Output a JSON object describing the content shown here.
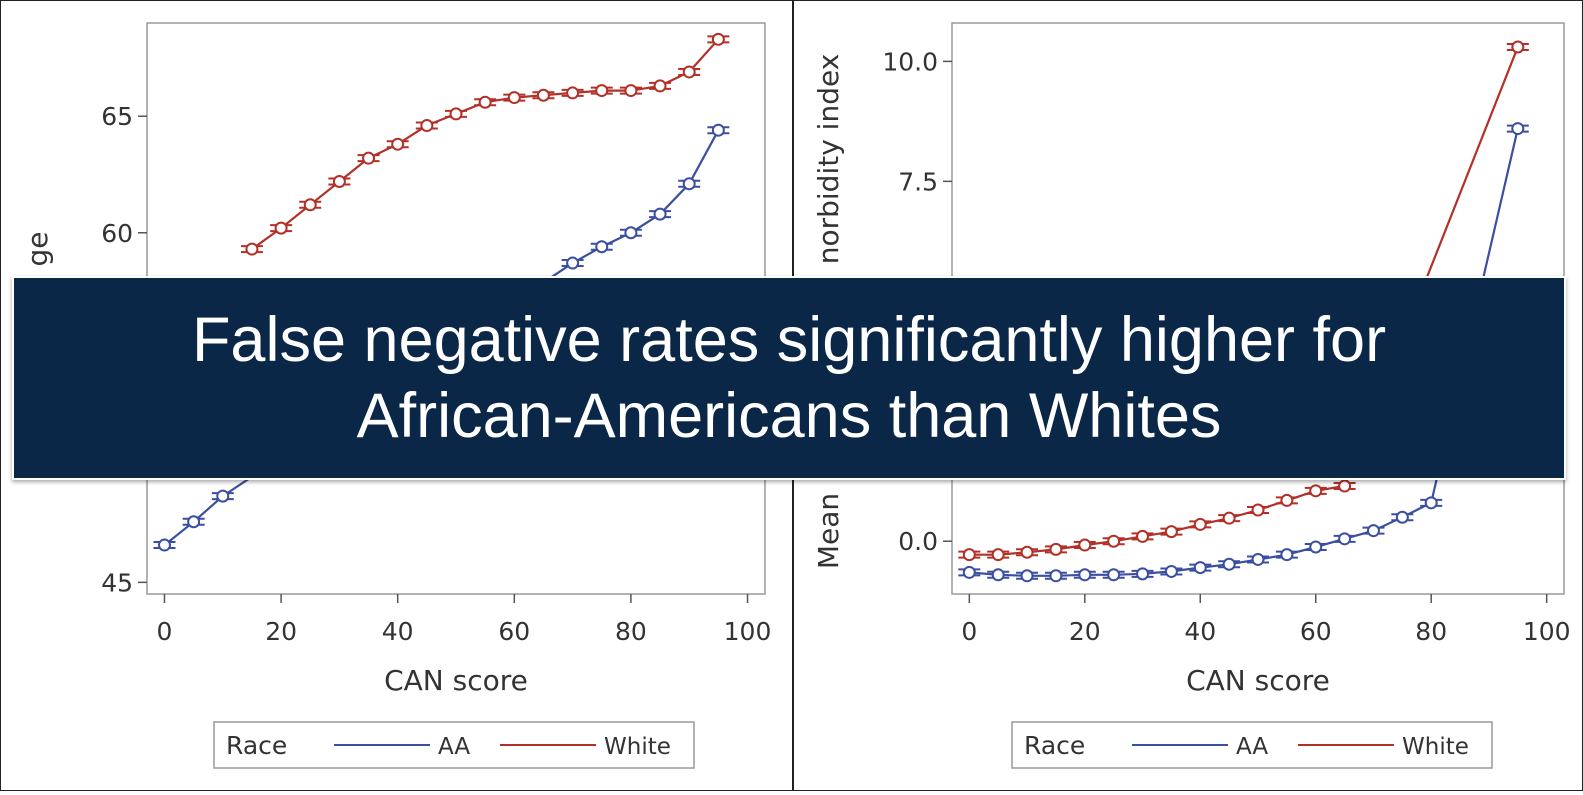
{
  "banner": {
    "line1": "False negative rates significantly higher for",
    "line2": "African-Americans than Whites"
  },
  "colors": {
    "aa": "#3b4fa0",
    "white": "#b23028"
  },
  "chart_data": [
    {
      "type": "line",
      "xlabel": "CAN score",
      "ylabel": "ge",
      "ylim": [
        44.5,
        69
      ],
      "xlim": [
        -3,
        103
      ],
      "yticks": [
        45,
        60,
        65
      ],
      "xticks": [
        0,
        20,
        40,
        60,
        80,
        100
      ],
      "legend": {
        "title": "Race",
        "placement": "bottom"
      },
      "series": [
        {
          "name": "AA",
          "x": [
            0,
            5,
            10,
            70,
            75,
            80,
            85,
            90,
            95
          ],
          "values": [
            46.6,
            47.6,
            48.7,
            58.7,
            59.4,
            60.0,
            60.8,
            62.1,
            64.4
          ]
        },
        {
          "name": "White",
          "x": [
            15,
            20,
            25,
            30,
            35,
            40,
            45,
            50,
            55,
            60,
            65,
            70,
            75,
            80,
            85,
            90,
            95
          ],
          "values": [
            59.3,
            60.2,
            61.2,
            62.2,
            63.2,
            63.8,
            64.6,
            65.1,
            65.6,
            65.8,
            65.9,
            66.0,
            66.1,
            66.1,
            66.3,
            66.9,
            68.3
          ]
        }
      ]
    },
    {
      "type": "line",
      "xlabel": "CAN score",
      "ylabel": "Mean",
      "ylabel_top": "norbidity index",
      "ylim": [
        -1.1,
        10.8
      ],
      "xlim": [
        -3,
        103
      ],
      "yticks": [
        0.0,
        7.5,
        10.0
      ],
      "ytick_labels": [
        "0.0",
        "7.5",
        "10.0"
      ],
      "xticks": [
        0,
        20,
        40,
        60,
        80,
        100
      ],
      "legend": {
        "title": "Race",
        "placement": "bottom"
      },
      "series": [
        {
          "name": "AA",
          "x": [
            0,
            5,
            10,
            15,
            20,
            25,
            30,
            35,
            40,
            45,
            50,
            55,
            60,
            65,
            70,
            75,
            80,
            95
          ],
          "values": [
            -0.65,
            -0.7,
            -0.72,
            -0.72,
            -0.7,
            -0.7,
            -0.68,
            -0.63,
            -0.55,
            -0.48,
            -0.38,
            -0.28,
            -0.12,
            0.05,
            0.22,
            0.5,
            0.8,
            8.6
          ]
        },
        {
          "name": "White",
          "x": [
            0,
            5,
            10,
            15,
            20,
            25,
            30,
            35,
            40,
            45,
            50,
            55,
            60,
            65,
            95
          ],
          "values": [
            -0.28,
            -0.28,
            -0.23,
            -0.17,
            -0.08,
            0.0,
            0.1,
            0.2,
            0.35,
            0.48,
            0.65,
            0.85,
            1.05,
            1.15,
            10.3
          ]
        }
      ]
    }
  ]
}
